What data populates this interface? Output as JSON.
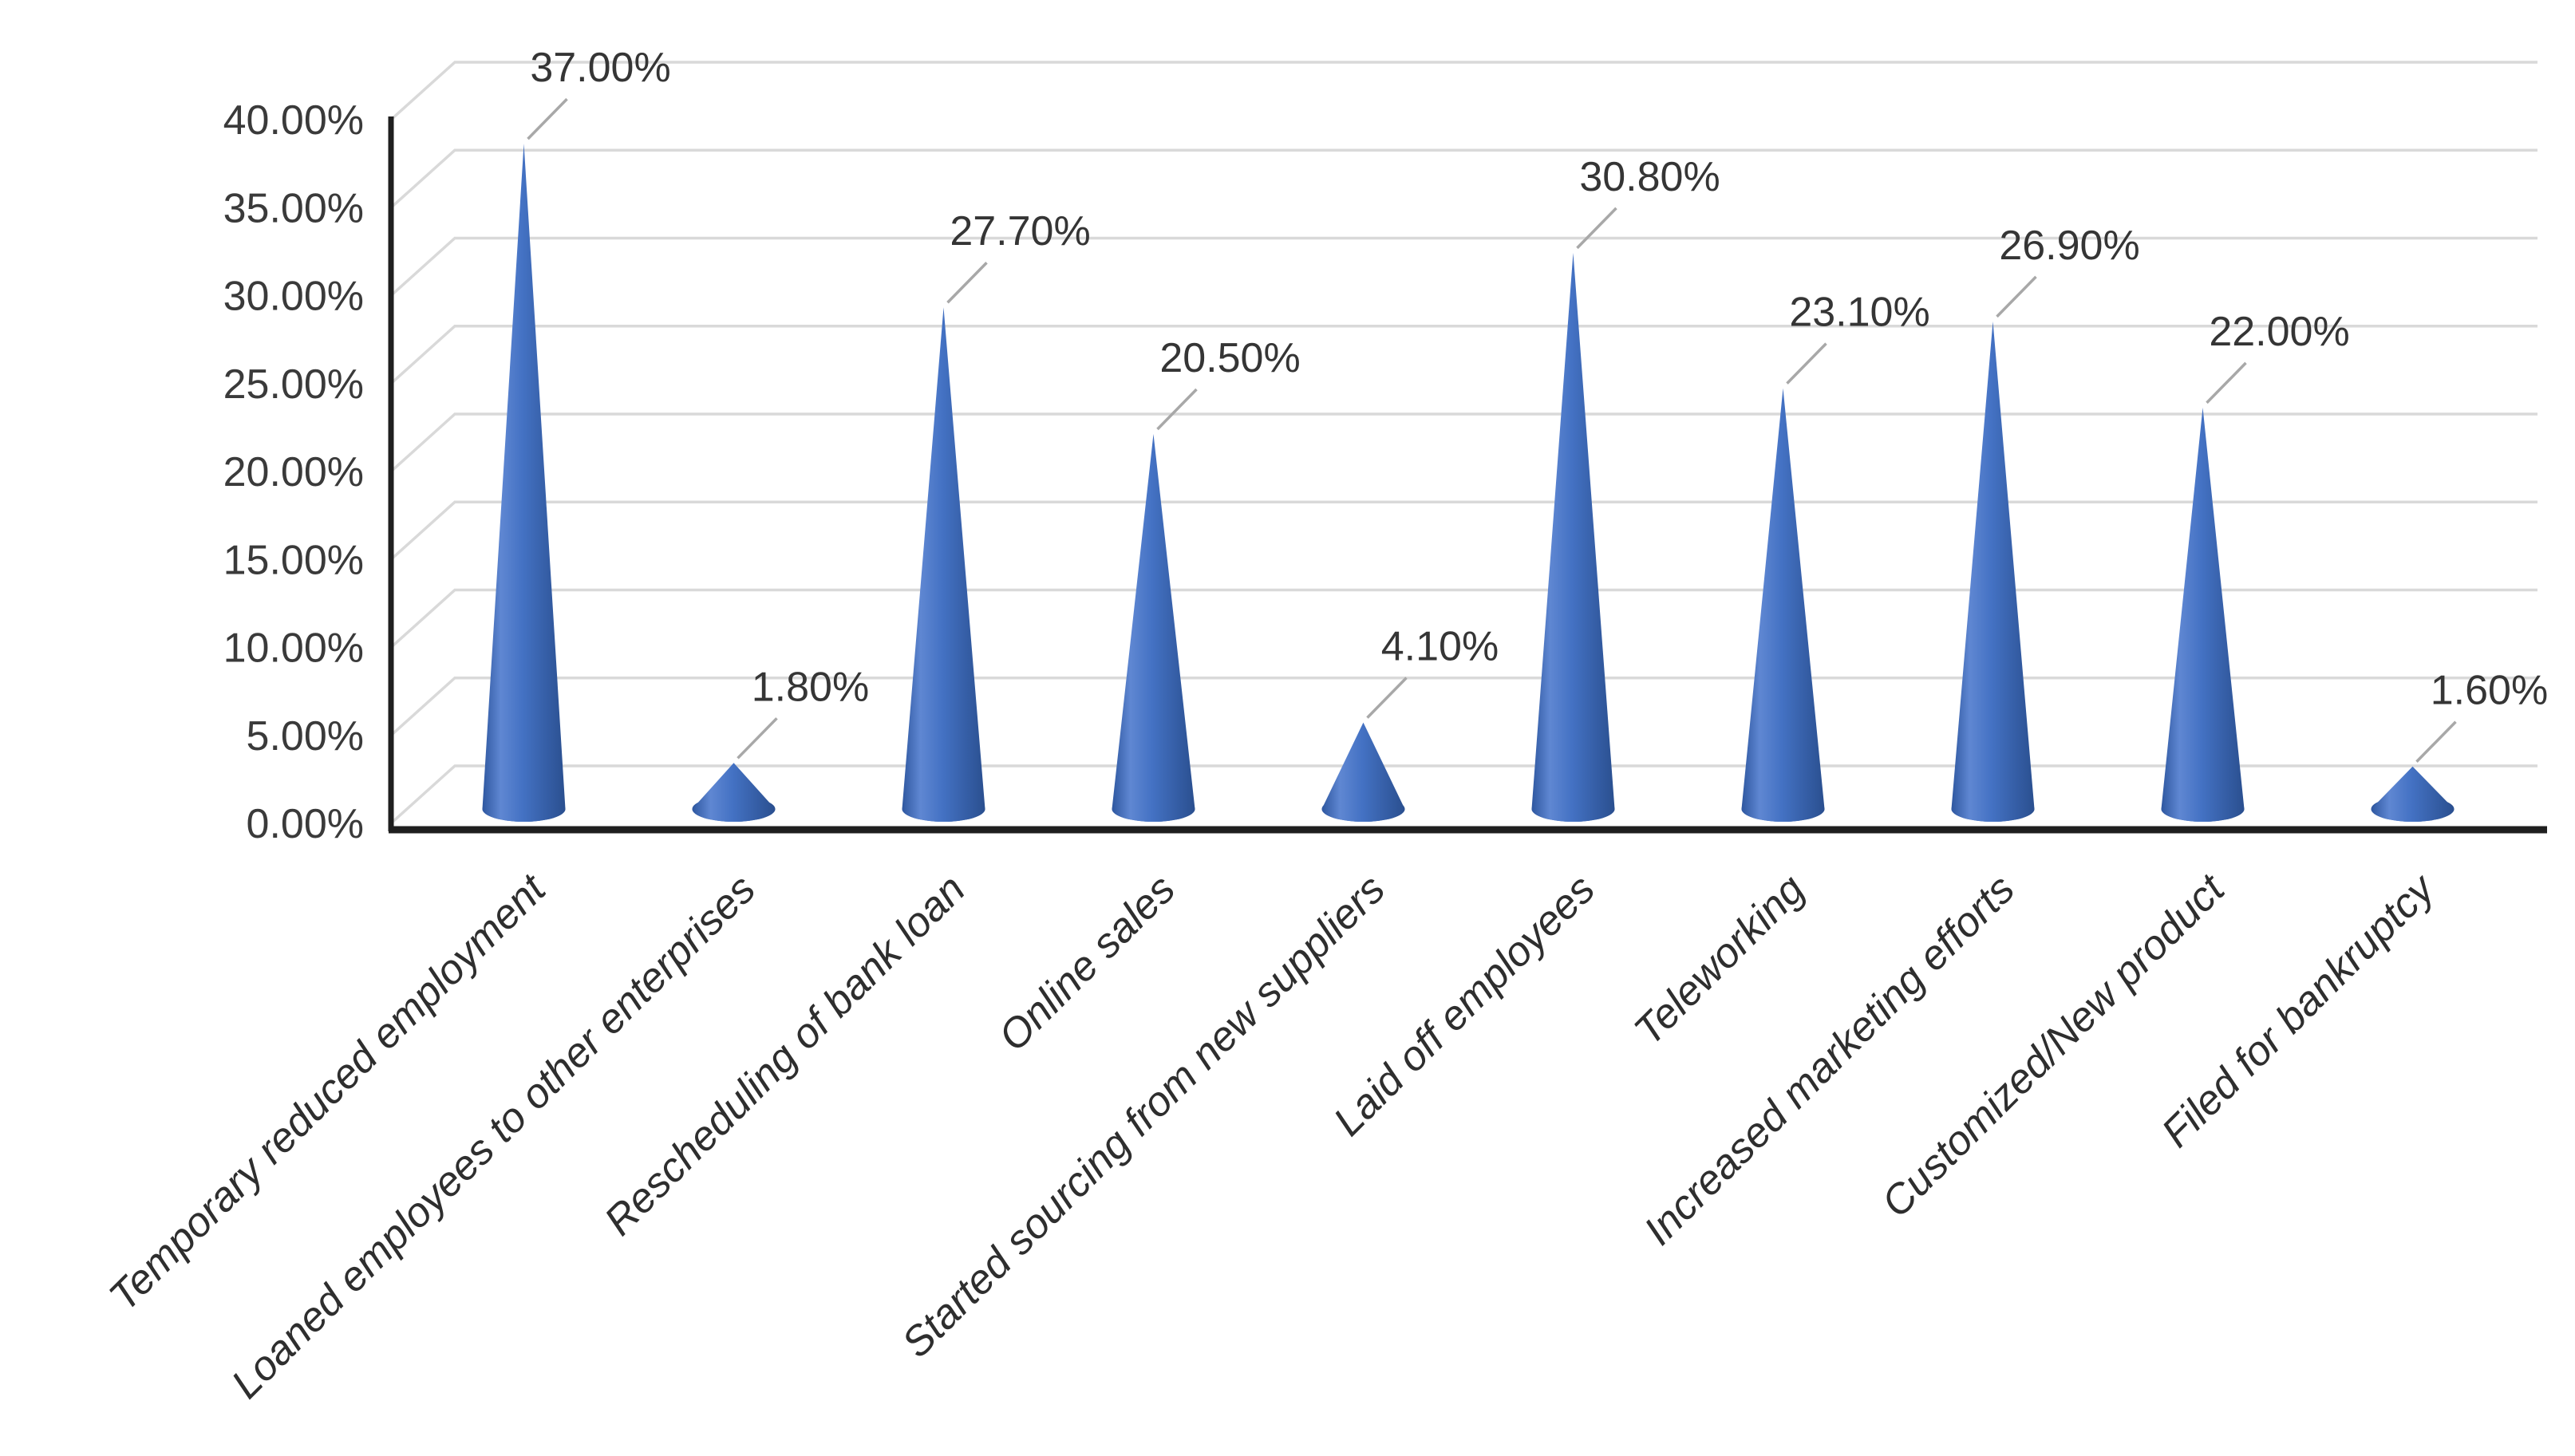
{
  "page": {
    "background": "#ffffff"
  },
  "chart_data": {
    "type": "bar",
    "variant": "3d-cone",
    "title": "",
    "xlabel": "",
    "ylabel": "",
    "categories": [
      "Temporary reduced employment",
      "Loaned employees to other enterprises",
      "Rescheduling of bank loan",
      "Online sales",
      "Started sourcing from new suppliers",
      "Laid off employees",
      "Teleworking",
      "Increased marketing efforts",
      "Customized/New product",
      "Filed for bankruptcy"
    ],
    "values": [
      37.0,
      1.8,
      27.7,
      20.5,
      4.1,
      30.8,
      23.1,
      26.9,
      22.0,
      1.6
    ],
    "data_labels": [
      "37.00%",
      "1.80%",
      "27.70%",
      "20.50%",
      "4.10%",
      "30.80%",
      "23.10%",
      "26.90%",
      "22.00%",
      "1.60%"
    ],
    "y_axis": {
      "min": 0,
      "max": 40,
      "step": 5,
      "tick_labels_top_down": [
        "40.00%",
        "35.00%",
        "30.00%",
        "25.00%",
        "20.00%",
        "15.00%",
        "10.00%",
        "5.00%",
        "0.00%"
      ]
    },
    "grid": true,
    "legend": "none",
    "colors": {
      "cone_edge_dark": "#2a4f8f",
      "cone_shadow": "#2e57a0",
      "cone_light": "#5f87d2",
      "cone_main": "#4472c4",
      "base_fill": "#305ba8",
      "grid": "#d9d9d9",
      "axis": "#1f1f1f",
      "tick_text": "#3a3a3a",
      "label_text": "#353535",
      "leader": "#a8a8a8"
    }
  }
}
